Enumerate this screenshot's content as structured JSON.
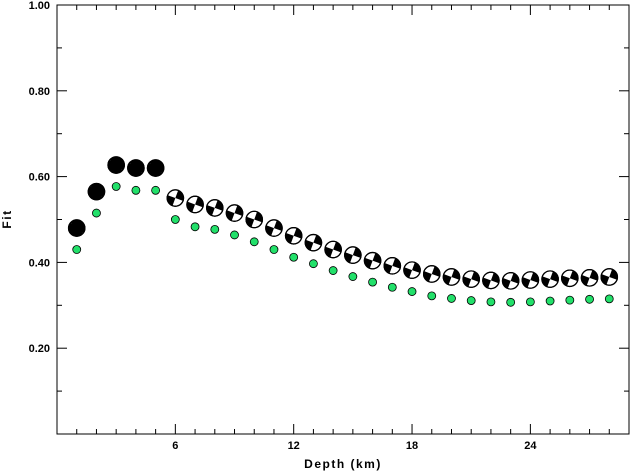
{
  "chart_data": {
    "type": "scatter",
    "title": "",
    "xlabel": "Depth (km)",
    "ylabel": "Fit",
    "xlim": [
      0,
      29
    ],
    "ylim": [
      0,
      1
    ],
    "x_ticks": [
      {
        "value": 6,
        "label": "6"
      },
      {
        "value": 12,
        "label": "12"
      },
      {
        "value": 18,
        "label": "18"
      },
      {
        "value": 24,
        "label": "24"
      }
    ],
    "y_ticks": [
      {
        "value": 0.2,
        "label": "0.20"
      },
      {
        "value": 0.4,
        "label": "0.40"
      },
      {
        "value": 0.6,
        "label": "0.60"
      },
      {
        "value": 0.8,
        "label": "0.80"
      },
      {
        "value": 1.0,
        "label": "1.00"
      }
    ],
    "grid": false,
    "series": [
      {
        "marker": "focal-mechanism-beachball",
        "color": "#000000",
        "points": [
          {
            "x": 1,
            "y": 0.48
          },
          {
            "x": 2,
            "y": 0.565
          },
          {
            "x": 3,
            "y": 0.627
          },
          {
            "x": 4,
            "y": 0.62
          },
          {
            "x": 5,
            "y": 0.62
          },
          {
            "x": 6,
            "y": 0.55
          },
          {
            "x": 7,
            "y": 0.535
          },
          {
            "x": 8,
            "y": 0.527
          },
          {
            "x": 9,
            "y": 0.515
          },
          {
            "x": 10,
            "y": 0.5
          },
          {
            "x": 11,
            "y": 0.48
          },
          {
            "x": 12,
            "y": 0.462
          },
          {
            "x": 13,
            "y": 0.446
          },
          {
            "x": 14,
            "y": 0.43
          },
          {
            "x": 15,
            "y": 0.417
          },
          {
            "x": 16,
            "y": 0.404
          },
          {
            "x": 17,
            "y": 0.392
          },
          {
            "x": 18,
            "y": 0.382
          },
          {
            "x": 19,
            "y": 0.373
          },
          {
            "x": 20,
            "y": 0.366
          },
          {
            "x": 21,
            "y": 0.361
          },
          {
            "x": 22,
            "y": 0.358
          },
          {
            "x": 23,
            "y": 0.357
          },
          {
            "x": 24,
            "y": 0.359
          },
          {
            "x": 25,
            "y": 0.361
          },
          {
            "x": 26,
            "y": 0.363
          },
          {
            "x": 27,
            "y": 0.364
          },
          {
            "x": 28,
            "y": 0.366
          }
        ]
      },
      {
        "marker": "circle",
        "color": "#22e06a",
        "points": [
          {
            "x": 1,
            "y": 0.43
          },
          {
            "x": 2,
            "y": 0.515
          },
          {
            "x": 3,
            "y": 0.577
          },
          {
            "x": 4,
            "y": 0.568
          },
          {
            "x": 5,
            "y": 0.568
          },
          {
            "x": 6,
            "y": 0.5
          },
          {
            "x": 7,
            "y": 0.483
          },
          {
            "x": 8,
            "y": 0.477
          },
          {
            "x": 9,
            "y": 0.464
          },
          {
            "x": 10,
            "y": 0.448
          },
          {
            "x": 11,
            "y": 0.43
          },
          {
            "x": 12,
            "y": 0.412
          },
          {
            "x": 13,
            "y": 0.397
          },
          {
            "x": 14,
            "y": 0.381
          },
          {
            "x": 15,
            "y": 0.367
          },
          {
            "x": 16,
            "y": 0.354
          },
          {
            "x": 17,
            "y": 0.342
          },
          {
            "x": 18,
            "y": 0.332
          },
          {
            "x": 19,
            "y": 0.322
          },
          {
            "x": 20,
            "y": 0.316
          },
          {
            "x": 21,
            "y": 0.311
          },
          {
            "x": 22,
            "y": 0.308
          },
          {
            "x": 23,
            "y": 0.307
          },
          {
            "x": 24,
            "y": 0.308
          },
          {
            "x": 25,
            "y": 0.31
          },
          {
            "x": 26,
            "y": 0.312
          },
          {
            "x": 27,
            "y": 0.314
          },
          {
            "x": 28,
            "y": 0.315
          }
        ]
      }
    ]
  }
}
